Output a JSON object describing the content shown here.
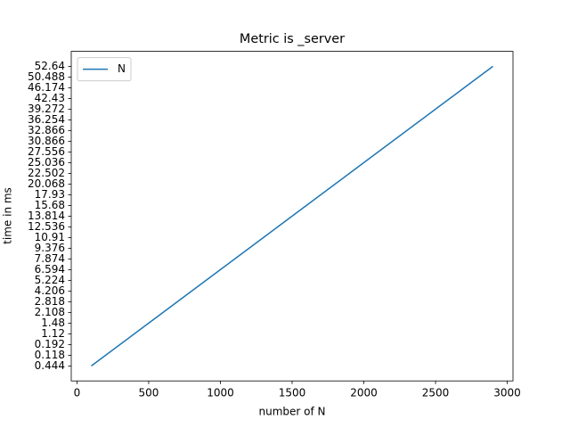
{
  "chart_data": {
    "type": "line",
    "title": "Metric is _server",
    "x_label": "number of N",
    "y_label": "time in ms",
    "x": [
      100,
      200,
      300,
      400,
      500,
      600,
      700,
      800,
      900,
      1000,
      1100,
      1200,
      1300,
      1400,
      1500,
      1600,
      1700,
      1800,
      1900,
      2000,
      2100,
      2200,
      2300,
      2400,
      2500,
      2600,
      2700,
      2800,
      2900
    ],
    "y_scale": "categorical",
    "ycategories": [
      0.444,
      0.118,
      0.192,
      1.12,
      1.48,
      2.108,
      2.818,
      4.206,
      5.224,
      6.594,
      7.874,
      9.376,
      10.91,
      12.536,
      13.814,
      15.68,
      17.93,
      20.068,
      22.502,
      25.036,
      27.556,
      30.866,
      32.866,
      36.254,
      39.272,
      42.43,
      46.174,
      50.488,
      52.64
    ],
    "series": [
      {
        "name": "N",
        "color": "#1f77b4",
        "values": [
          0.444,
          0.118,
          0.192,
          1.12,
          1.48,
          2.108,
          2.818,
          4.206,
          5.224,
          6.594,
          7.874,
          9.376,
          10.91,
          12.536,
          13.814,
          15.68,
          17.93,
          20.068,
          22.502,
          25.036,
          27.556,
          30.866,
          32.866,
          36.254,
          39.272,
          42.43,
          46.174,
          50.488,
          52.64
        ]
      }
    ],
    "xlim": [
      -40,
      3040
    ],
    "xticks": [
      0,
      500,
      1000,
      1500,
      2000,
      2500,
      3000
    ],
    "legend": "upper left",
    "grid": false
  }
}
